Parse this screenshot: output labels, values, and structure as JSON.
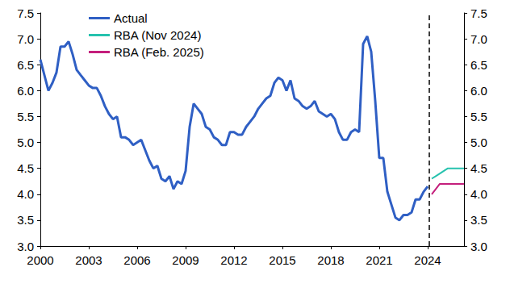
{
  "chart_data": {
    "type": "line",
    "legend": "upper left",
    "grid": false,
    "xlim": [
      2000,
      2026.25
    ],
    "xticks": [
      2000,
      2003,
      2006,
      2009,
      2012,
      2015,
      2018,
      2021,
      2024
    ],
    "ylim": [
      3,
      7.5
    ],
    "yticks": [
      {
        "value": 3,
        "label": "3.0"
      },
      {
        "value": 3.5,
        "label": "3.5"
      },
      {
        "value": 4,
        "label": "4.0"
      },
      {
        "value": 4.5,
        "label": "4.5"
      },
      {
        "value": 5,
        "label": "5.0"
      },
      {
        "value": 5.5,
        "label": "5.5"
      },
      {
        "value": 6,
        "label": "6.0"
      },
      {
        "value": 6.5,
        "label": "6.5"
      },
      {
        "value": 7,
        "label": "7.0"
      },
      {
        "value": 7.5,
        "label": "7.5"
      }
    ],
    "y2lim": [
      3,
      7.5
    ],
    "y2ticks": [
      {
        "value": 3,
        "label": "3.0"
      },
      {
        "value": 3.5,
        "label": "3.5"
      },
      {
        "value": 4,
        "label": "4.0"
      },
      {
        "value": 4.5,
        "label": "4.5"
      },
      {
        "value": 5,
        "label": "5.0"
      },
      {
        "value": 5.5,
        "label": "5.5"
      },
      {
        "value": 6,
        "label": "6.0"
      },
      {
        "value": 6.5,
        "label": "6.5"
      },
      {
        "value": 7,
        "label": "7.0"
      },
      {
        "value": 7.5,
        "label": "7.5"
      }
    ],
    "divider_x": 2024.1,
    "series": [
      {
        "name": "Actual",
        "color": "#2f5fc4",
        "line_style": "solid",
        "x": [
          2000,
          2000.25,
          2000.5,
          2000.75,
          2001,
          2001.25,
          2001.5,
          2001.75,
          2002,
          2002.25,
          2002.5,
          2002.75,
          2003,
          2003.25,
          2003.5,
          2003.75,
          2004,
          2004.25,
          2004.5,
          2004.75,
          2005,
          2005.25,
          2005.5,
          2005.75,
          2006,
          2006.25,
          2006.5,
          2006.75,
          2007,
          2007.25,
          2007.5,
          2007.75,
          2008,
          2008.25,
          2008.5,
          2008.75,
          2009,
          2009.25,
          2009.5,
          2009.75,
          2010,
          2010.25,
          2010.5,
          2010.75,
          2011,
          2011.25,
          2011.5,
          2011.75,
          2012,
          2012.25,
          2012.5,
          2012.75,
          2013,
          2013.25,
          2013.5,
          2013.75,
          2014,
          2014.25,
          2014.5,
          2014.75,
          2015,
          2015.25,
          2015.5,
          2015.75,
          2016,
          2016.25,
          2016.5,
          2016.75,
          2017,
          2017.25,
          2017.5,
          2017.75,
          2018,
          2018.25,
          2018.5,
          2018.75,
          2019,
          2019.25,
          2019.5,
          2019.75,
          2020,
          2020.25,
          2020.5,
          2020.75,
          2021,
          2021.25,
          2021.5,
          2021.75,
          2022,
          2022.25,
          2022.5,
          2022.75,
          2023,
          2023.25,
          2023.5,
          2023.75,
          2024
        ],
        "values": [
          6.6,
          6.3,
          6.0,
          6.15,
          6.35,
          6.85,
          6.85,
          6.95,
          6.7,
          6.4,
          6.3,
          6.2,
          6.1,
          6.05,
          6.05,
          5.9,
          5.7,
          5.55,
          5.45,
          5.5,
          5.1,
          5.1,
          5.05,
          4.95,
          5.0,
          5.05,
          4.85,
          4.65,
          4.5,
          4.55,
          4.3,
          4.25,
          4.35,
          4.1,
          4.25,
          4.2,
          4.45,
          5.3,
          5.75,
          5.65,
          5.55,
          5.3,
          5.25,
          5.1,
          5.05,
          4.95,
          4.95,
          5.2,
          5.2,
          5.15,
          5.15,
          5.3,
          5.4,
          5.5,
          5.65,
          5.75,
          5.85,
          5.9,
          6.15,
          6.25,
          6.2,
          6.0,
          6.2,
          5.85,
          5.8,
          5.7,
          5.65,
          5.7,
          5.8,
          5.6,
          5.55,
          5.5,
          5.55,
          5.45,
          5.2,
          5.05,
          5.05,
          5.2,
          5.25,
          5.2,
          6.9,
          7.05,
          6.75,
          5.8,
          4.7,
          4.7,
          4.05,
          3.8,
          3.55,
          3.5,
          3.6,
          3.6,
          3.65,
          3.9,
          3.9,
          4.05,
          4.15
        ]
      },
      {
        "name": "RBA (Nov 2024)",
        "color": "#26c2ae",
        "line_style": "solid",
        "x": [
          2024.25,
          2024.5,
          2024.75,
          2025,
          2025.25,
          2025.5,
          2025.75,
          2026,
          2026.25
        ],
        "values": [
          4.3,
          4.35,
          4.4,
          4.45,
          4.5,
          4.5,
          4.5,
          4.5,
          4.5
        ]
      },
      {
        "name": "RBA (Feb. 2025)",
        "color": "#c41f7c",
        "line_style": "solid",
        "x": [
          2024.25,
          2024.5,
          2024.75,
          2025,
          2025.25,
          2025.5,
          2025.75,
          2026,
          2026.25
        ],
        "values": [
          4.0,
          4.1,
          4.2,
          4.2,
          4.2,
          4.2,
          4.2,
          4.2,
          4.2
        ]
      }
    ]
  }
}
